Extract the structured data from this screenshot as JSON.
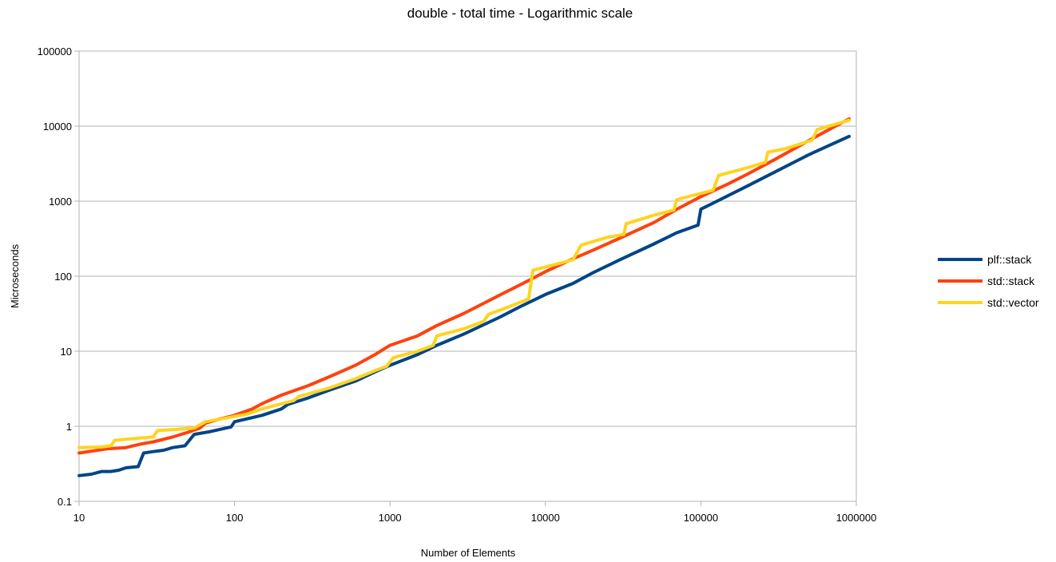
{
  "chart_data": {
    "type": "line",
    "title": "double - total time - Logarithmic scale",
    "xlabel": "Number of Elements",
    "ylabel": "Microseconds",
    "xscale": "log",
    "yscale": "log",
    "xlim": [
      10,
      1000000
    ],
    "ylim": [
      0.1,
      100000
    ],
    "x_ticks": [
      "10",
      "100",
      "1000",
      "10000",
      "100000",
      "1000000"
    ],
    "y_ticks": [
      "0.1",
      "1",
      "10",
      "100",
      "1000",
      "10000",
      "100000"
    ],
    "grid": "horizontal",
    "legend": "right",
    "series": [
      {
        "name": "plf::stack",
        "color": "#004586",
        "points": [
          [
            10,
            0.22
          ],
          [
            12,
            0.23
          ],
          [
            14,
            0.25
          ],
          [
            16,
            0.25
          ],
          [
            18,
            0.26
          ],
          [
            20,
            0.28
          ],
          [
            24,
            0.29
          ],
          [
            26,
            0.44
          ],
          [
            30,
            0.46
          ],
          [
            35,
            0.48
          ],
          [
            40,
            0.52
          ],
          [
            48,
            0.55
          ],
          [
            55,
            0.78
          ],
          [
            70,
            0.85
          ],
          [
            95,
            0.98
          ],
          [
            100,
            1.15
          ],
          [
            150,
            1.4
          ],
          [
            200,
            1.7
          ],
          [
            220,
            1.95
          ],
          [
            300,
            2.4
          ],
          [
            400,
            3.0
          ],
          [
            600,
            4.0
          ],
          [
            800,
            5.3
          ],
          [
            1000,
            6.5
          ],
          [
            1500,
            9.0
          ],
          [
            2000,
            12
          ],
          [
            3000,
            17
          ],
          [
            5000,
            28
          ],
          [
            7000,
            40
          ],
          [
            10000,
            57
          ],
          [
            15000,
            80
          ],
          [
            20000,
            110
          ],
          [
            30000,
            165
          ],
          [
            50000,
            270
          ],
          [
            70000,
            380
          ],
          [
            96000,
            480
          ],
          [
            100000,
            780
          ],
          [
            200000,
            1600
          ],
          [
            500000,
            4200
          ],
          [
            900000,
            7300
          ]
        ]
      },
      {
        "name": "std::stack",
        "color": "#ff420e",
        "points": [
          [
            10,
            0.44
          ],
          [
            15,
            0.5
          ],
          [
            20,
            0.52
          ],
          [
            25,
            0.58
          ],
          [
            30,
            0.62
          ],
          [
            40,
            0.72
          ],
          [
            50,
            0.83
          ],
          [
            60,
            0.95
          ],
          [
            65,
            1.1
          ],
          [
            80,
            1.25
          ],
          [
            100,
            1.4
          ],
          [
            130,
            1.7
          ],
          [
            150,
            2.0
          ],
          [
            200,
            2.6
          ],
          [
            300,
            3.5
          ],
          [
            400,
            4.5
          ],
          [
            600,
            6.5
          ],
          [
            800,
            9.0
          ],
          [
            1000,
            12
          ],
          [
            1500,
            16
          ],
          [
            2000,
            22
          ],
          [
            3000,
            32
          ],
          [
            5000,
            55
          ],
          [
            8000,
            90
          ],
          [
            10000,
            115
          ],
          [
            15000,
            170
          ],
          [
            20000,
            220
          ],
          [
            30000,
            320
          ],
          [
            50000,
            520
          ],
          [
            70000,
            780
          ],
          [
            100000,
            1150
          ],
          [
            150000,
            1700
          ],
          [
            200000,
            2300
          ],
          [
            300000,
            3600
          ],
          [
            500000,
            6500
          ],
          [
            700000,
            9500
          ],
          [
            900000,
            12500
          ]
        ]
      },
      {
        "name": "std::vector",
        "color": "#ffd320",
        "points": [
          [
            10,
            0.52
          ],
          [
            14,
            0.53
          ],
          [
            16,
            0.55
          ],
          [
            17,
            0.65
          ],
          [
            20,
            0.67
          ],
          [
            25,
            0.7
          ],
          [
            30,
            0.72
          ],
          [
            32,
            0.88
          ],
          [
            40,
            0.9
          ],
          [
            55,
            0.95
          ],
          [
            65,
            1.15
          ],
          [
            100,
            1.35
          ],
          [
            120,
            1.45
          ],
          [
            150,
            1.7
          ],
          [
            240,
            2.2
          ],
          [
            260,
            2.5
          ],
          [
            400,
            3.2
          ],
          [
            600,
            4.3
          ],
          [
            800,
            5.5
          ],
          [
            950,
            6.3
          ],
          [
            1050,
            8.2
          ],
          [
            1500,
            10
          ],
          [
            1900,
            12
          ],
          [
            2000,
            16
          ],
          [
            3000,
            20
          ],
          [
            4000,
            25
          ],
          [
            4300,
            31
          ],
          [
            6000,
            40
          ],
          [
            7800,
            50
          ],
          [
            8300,
            120
          ],
          [
            15000,
            165
          ],
          [
            17000,
            260
          ],
          [
            25000,
            330
          ],
          [
            32000,
            360
          ],
          [
            33000,
            500
          ],
          [
            50000,
            650
          ],
          [
            67000,
            760
          ],
          [
            70000,
            1050
          ],
          [
            120000,
            1400
          ],
          [
            130000,
            2200
          ],
          [
            200000,
            2800
          ],
          [
            260000,
            3300
          ],
          [
            270000,
            4500
          ],
          [
            350000,
            5000
          ],
          [
            520000,
            6500
          ],
          [
            560000,
            9000
          ],
          [
            900000,
            12000
          ]
        ]
      }
    ]
  }
}
